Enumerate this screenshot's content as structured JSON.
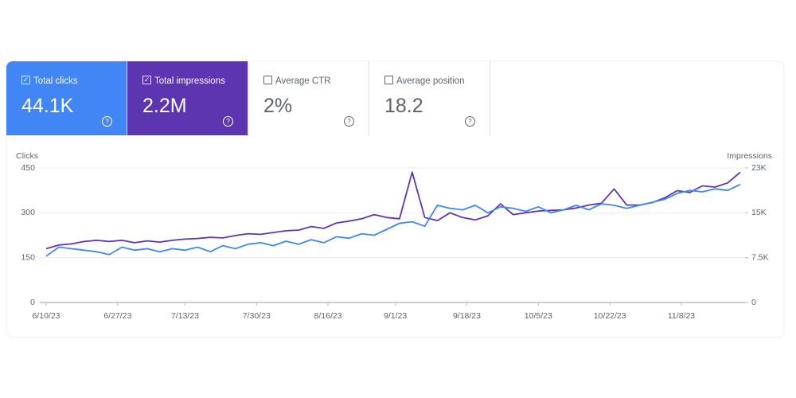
{
  "cards": [
    {
      "label": "Total clicks",
      "value": "44.1K",
      "selected": true,
      "color": "#4285f4"
    },
    {
      "label": "Total impressions",
      "value": "2.2M",
      "selected": true,
      "color": "#5e35b1"
    },
    {
      "label": "Average CTR",
      "value": "2%",
      "selected": false,
      "color": "#ffffff"
    },
    {
      "label": "Average position",
      "value": "18.2",
      "selected": false,
      "color": "#ffffff"
    }
  ],
  "chart_data": {
    "type": "line",
    "y_label": "Clicks",
    "y2_label": "Impressions",
    "x": [
      "6/10/23",
      "6/13/23",
      "6/16/23",
      "6/19/23",
      "6/22/23",
      "6/25/23",
      "6/28/23",
      "7/1/23",
      "7/4/23",
      "7/7/23",
      "7/10/23",
      "7/13/23",
      "7/16/23",
      "7/19/23",
      "7/22/23",
      "7/25/23",
      "7/28/23",
      "7/31/23",
      "8/3/23",
      "8/6/23",
      "8/9/23",
      "8/12/23",
      "8/15/23",
      "8/18/23",
      "8/21/23",
      "8/24/23",
      "8/27/23",
      "8/30/23",
      "9/2/23",
      "9/5/23",
      "9/8/23",
      "9/11/23",
      "9/14/23",
      "9/17/23",
      "9/20/23",
      "9/23/23",
      "9/26/23",
      "9/29/23",
      "10/2/23",
      "10/5/23",
      "10/8/23",
      "10/11/23",
      "10/14/23",
      "10/17/23",
      "10/20/23",
      "10/23/23",
      "10/26/23",
      "10/29/23",
      "11/1/23",
      "11/4/23",
      "11/7/23",
      "11/10/23",
      "11/13/23",
      "11/16/23",
      "11/19/23",
      "11/22/23"
    ],
    "series": [
      {
        "name": "Clicks",
        "color": "#4285f4",
        "values": [
          155,
          185,
          180,
          175,
          170,
          160,
          185,
          175,
          180,
          170,
          180,
          175,
          185,
          170,
          190,
          180,
          195,
          200,
          190,
          205,
          195,
          210,
          200,
          220,
          215,
          230,
          225,
          245,
          265,
          270,
          255,
          325,
          315,
          310,
          325,
          300,
          320,
          315,
          305,
          320,
          300,
          310,
          325,
          310,
          330,
          325,
          315,
          325,
          335,
          345,
          365,
          375,
          370,
          380,
          375,
          395
        ]
      },
      {
        "name": "Impressions",
        "color": "#5e35b1",
        "axis": "y2",
        "values": [
          9000,
          9600,
          9800,
          10200,
          10400,
          10200,
          10400,
          10000,
          10300,
          10100,
          10400,
          10600,
          10700,
          10900,
          10800,
          11200,
          11500,
          11400,
          11700,
          12000,
          12100,
          12700,
          12400,
          13300,
          13600,
          14000,
          14700,
          14200,
          14000,
          21800,
          14200,
          13700,
          15000,
          14200,
          13800,
          14500,
          16500,
          14700,
          15000,
          15300,
          15400,
          15500,
          15800,
          16300,
          16600,
          19000,
          16300,
          16300,
          16700,
          17500,
          18700,
          18400,
          19500,
          19300,
          20000,
          21800
        ]
      }
    ],
    "xlim": [
      "6/10/23",
      "11/22/23"
    ],
    "xticks": [
      "6/10/23",
      "6/27/23",
      "7/13/23",
      "7/30/23",
      "8/16/23",
      "9/1/23",
      "9/18/23",
      "10/5/23",
      "10/22/23",
      "11/8/23"
    ],
    "ylim": [
      0,
      450
    ],
    "yticks": [
      0,
      150,
      300,
      450
    ],
    "y2lim": [
      0,
      22500
    ],
    "y2ticks": [
      0,
      {
        "value": 7500,
        "label": "7.5K"
      },
      {
        "value": 15000,
        "label": "15K"
      },
      {
        "value": 22500,
        "label": "23K"
      }
    ],
    "grid": true
  }
}
